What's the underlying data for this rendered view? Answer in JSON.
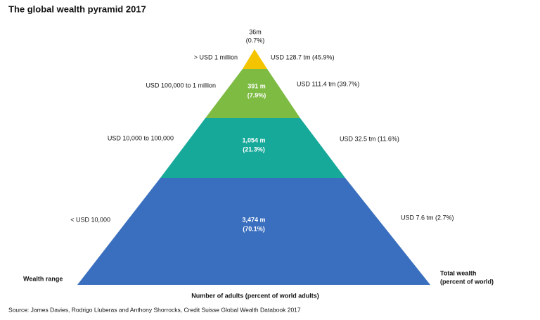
{
  "title": "The global wealth pyramid 2017",
  "levels": [
    {
      "range": "> USD 1 million",
      "adults": "36m",
      "adults_share": "(0.7%)",
      "wealth": "USD 128.7 tm (45.9%)"
    },
    {
      "range": "USD 100,000  to 1 million",
      "adults": "391 m",
      "adults_share": "(7.9%)",
      "wealth": "USD 111.4 tm (39.7%)"
    },
    {
      "range": "USD 10,000  to 100,000",
      "adults": "1,054 m",
      "adults_share": "(21.3%)",
      "wealth": "USD 32.5 tm (11.6%)"
    },
    {
      "range": "< USD 10,000",
      "adults": "3,474 m",
      "adults_share": "(70.1%)",
      "wealth": "USD 7.6 tm (2.7%)"
    }
  ],
  "left_label": "Wealth range",
  "right_label": [
    "Total wealth",
    "(percent of world)"
  ],
  "bottom_label": "Number of adults (percent of world adults)",
  "source": "Source: James Davies, Rodrigo Lluberas and Anthony Shorrocks, Credit Suisse Global Wealth Databook 2017"
}
